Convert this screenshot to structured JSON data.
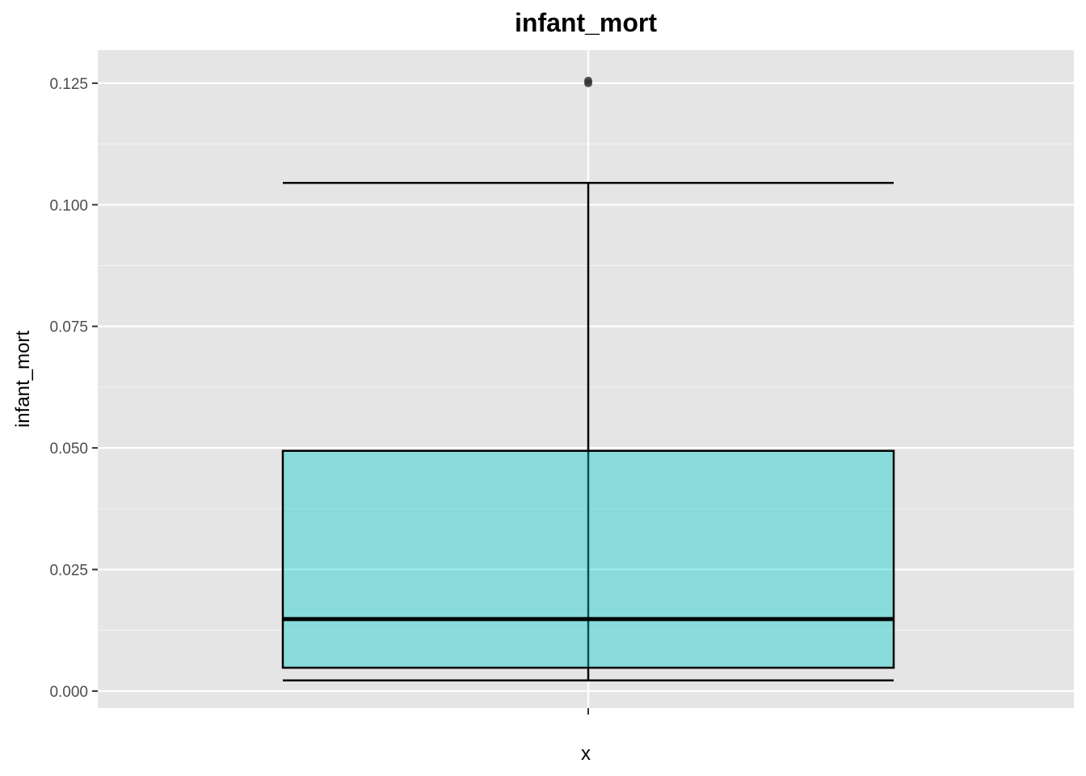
{
  "chart_data": {
    "type": "boxplot",
    "title": "infant_mort",
    "xlabel": "x",
    "ylabel": "infant_mort",
    "ylim": [
      -0.0035,
      0.1318
    ],
    "yticks": [
      0.0,
      0.025,
      0.05,
      0.075,
      0.1,
      0.125
    ],
    "ytick_labels": [
      "0.000",
      "0.025",
      "0.050",
      "0.075",
      "0.100",
      "0.125"
    ],
    "x_categories": [
      ""
    ],
    "grid": true,
    "boxes": [
      {
        "category": "",
        "whisker_low": 0.0022,
        "q1": 0.0048,
        "median": 0.0148,
        "q3": 0.0494,
        "whisker_high": 0.1045,
        "outliers": [
          0.125,
          0.1255
        ]
      }
    ],
    "colors": {
      "panel_background": "#e5e5e5",
      "grid_major": "#ffffff",
      "grid_minor": "#f2f2f2",
      "box_fill": "#00CCCC",
      "box_fill_opacity": 0.4,
      "outline": "#000000",
      "outlier": "#333333"
    }
  }
}
